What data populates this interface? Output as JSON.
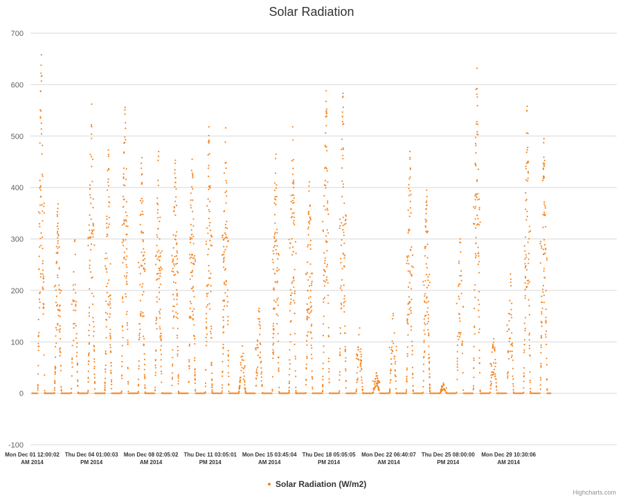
{
  "chart_data": {
    "type": "scatter",
    "title": "Solar Radiation",
    "xlabel": "",
    "ylabel": "",
    "ylim": [
      -100,
      700
    ],
    "yticks": [
      -100,
      0,
      100,
      200,
      300,
      400,
      500,
      600,
      700
    ],
    "grid": true,
    "x_range": [
      "2014-12-01",
      "2015-01-01"
    ],
    "xticks": [
      {
        "line1": "Mon Dec 01 12:00:02",
        "line2": "AM 2014",
        "t": 0.0
      },
      {
        "line1": "Thu Dec 04 01:00:03",
        "line2": "PM 2014",
        "t": 3.54
      },
      {
        "line1": "Mon Dec 08 02:05:02",
        "line2": "AM 2014",
        "t": 7.09
      },
      {
        "line1": "Thu Dec 11 03:05:01",
        "line2": "PM 2014",
        "t": 10.63
      },
      {
        "line1": "Mon Dec 15 03:45:04",
        "line2": "AM 2014",
        "t": 14.16
      },
      {
        "line1": "Thu Dec 18 05:05:05",
        "line2": "PM 2014",
        "t": 17.71
      },
      {
        "line1": "Mon Dec 22 06:40:07",
        "line2": "AM 2014",
        "t": 21.28
      },
      {
        "line1": "Thu Dec 25 08:00:00",
        "line2": "PM 2014",
        "t": 24.83
      },
      {
        "line1": "Mon Dec 29 10:30:06",
        "line2": "AM 2014",
        "t": 28.44
      }
    ],
    "series": [
      {
        "name": "Solar Radiation (W/m2)",
        "color": "#f7841f",
        "daily_peaks": [
          {
            "day": 0.55,
            "peak": 658
          },
          {
            "day": 1.55,
            "peak": 368
          },
          {
            "day": 2.55,
            "peak": 298
          },
          {
            "day": 3.55,
            "peak": 562
          },
          {
            "day": 4.55,
            "peak": 473
          },
          {
            "day": 5.55,
            "peak": 556
          },
          {
            "day": 6.55,
            "peak": 458
          },
          {
            "day": 7.55,
            "peak": 470
          },
          {
            "day": 8.55,
            "peak": 453
          },
          {
            "day": 9.55,
            "peak": 455
          },
          {
            "day": 10.55,
            "peak": 518
          },
          {
            "day": 11.55,
            "peak": 516
          },
          {
            "day": 12.55,
            "peak": 92
          },
          {
            "day": 13.55,
            "peak": 165
          },
          {
            "day": 14.55,
            "peak": 465
          },
          {
            "day": 15.55,
            "peak": 518
          },
          {
            "day": 16.55,
            "peak": 411
          },
          {
            "day": 17.55,
            "peak": 588
          },
          {
            "day": 18.55,
            "peak": 583
          },
          {
            "day": 19.55,
            "peak": 127
          },
          {
            "day": 20.55,
            "peak": 40
          },
          {
            "day": 21.55,
            "peak": 155
          },
          {
            "day": 22.55,
            "peak": 470
          },
          {
            "day": 23.55,
            "peak": 395
          },
          {
            "day": 24.55,
            "peak": 20
          },
          {
            "day": 25.55,
            "peak": 300
          },
          {
            "day": 26.55,
            "peak": 632
          },
          {
            "day": 27.55,
            "peak": 106
          },
          {
            "day": 28.55,
            "peak": 232
          },
          {
            "day": 29.55,
            "peak": 558
          },
          {
            "day": 30.55,
            "peak": 495
          }
        ]
      }
    ],
    "legend": {
      "position": "bottom-center",
      "label": "Solar Radiation (W/m2)"
    },
    "credits": "Highcharts.com"
  }
}
